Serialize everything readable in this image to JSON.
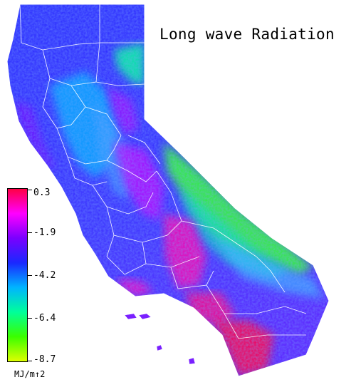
{
  "map": {
    "title": "Long wave Radiation"
  },
  "legend": {
    "colors": [
      "#ff0044",
      "#ff00ff",
      "#7a00ff",
      "#1a28ff",
      "#00b4ff",
      "#00ff9a",
      "#3aff00",
      "#ddff00"
    ],
    "labels": [
      "0.3",
      "-1.9",
      "-4.2",
      "-6.4",
      "-8.7"
    ],
    "units": "MJ/m↑2"
  }
}
